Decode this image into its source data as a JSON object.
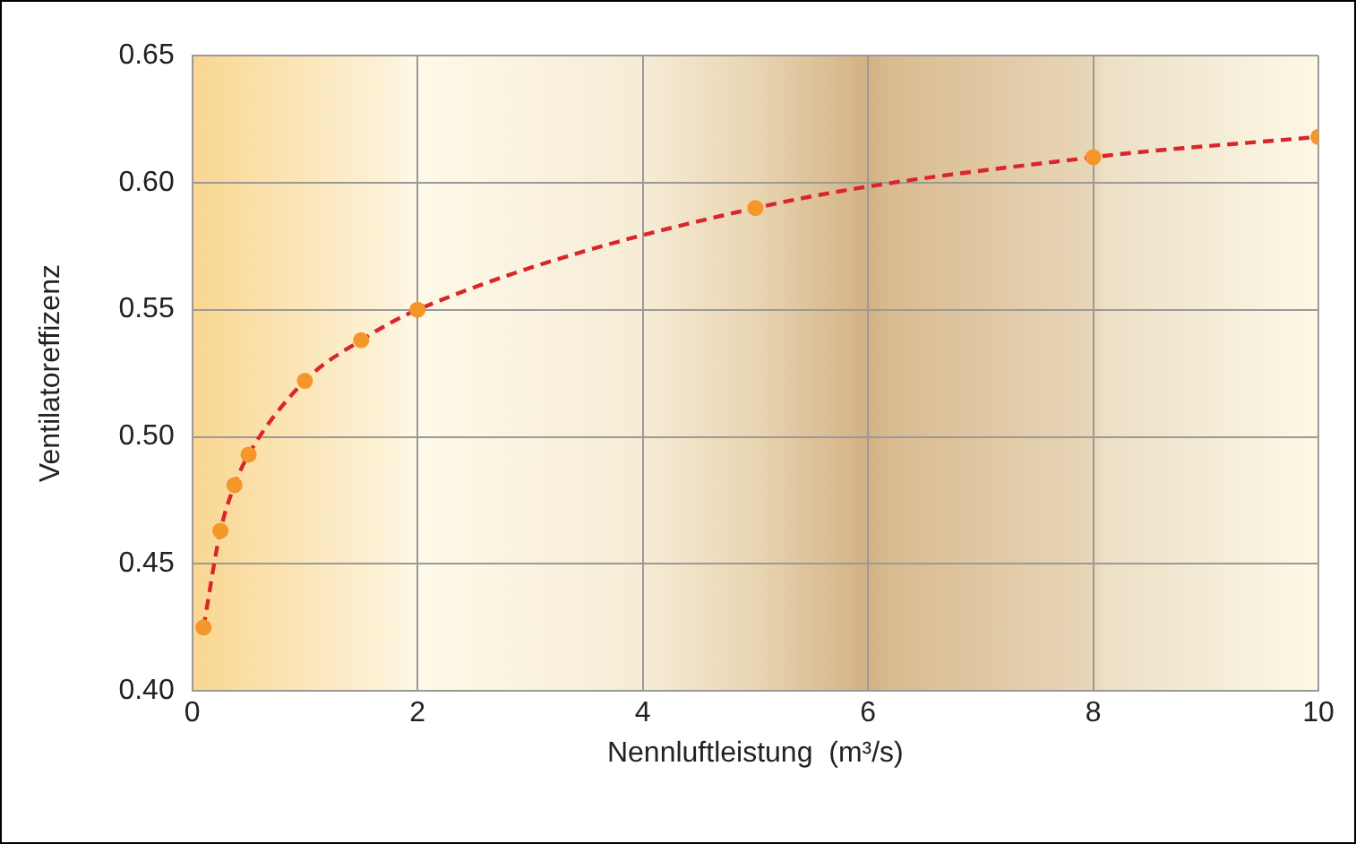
{
  "chart_data": {
    "type": "scatter",
    "xlabel": "Nennluftleistung  (m³/s)",
    "ylabel": "Ventilatoreffizenz",
    "xlim": [
      0,
      10
    ],
    "xticks": [
      0,
      2,
      4,
      6,
      8,
      10
    ],
    "ylim": [
      0.4,
      0.65
    ],
    "yticks": [
      {
        "value": 0.4,
        "label": "0.40"
      },
      0.45,
      {
        "value": 0.5,
        "label": "0.50"
      },
      0.55,
      {
        "value": 0.6,
        "label": "0.60"
      },
      0.65
    ],
    "grid": true,
    "legend": false,
    "series": [
      {
        "type": "line",
        "color": "#d9262b",
        "line_style": "dashed",
        "marker": "none",
        "x": [
          0.1,
          0.25,
          0.375,
          0.5,
          1,
          1.5,
          2,
          5,
          8,
          10
        ],
        "values": [
          0.425,
          0.463,
          0.481,
          0.493,
          0.522,
          0.538,
          0.55,
          0.59,
          0.61,
          0.618
        ]
      },
      {
        "color": "#f5962a",
        "marker": "circle",
        "x": [
          0.1,
          0.25,
          0.375,
          0.5,
          1,
          1.5,
          2,
          5,
          8,
          10
        ],
        "values": [
          0.425,
          0.463,
          0.481,
          0.493,
          0.522,
          0.538,
          0.55,
          0.59,
          0.61,
          0.618
        ]
      }
    ]
  }
}
